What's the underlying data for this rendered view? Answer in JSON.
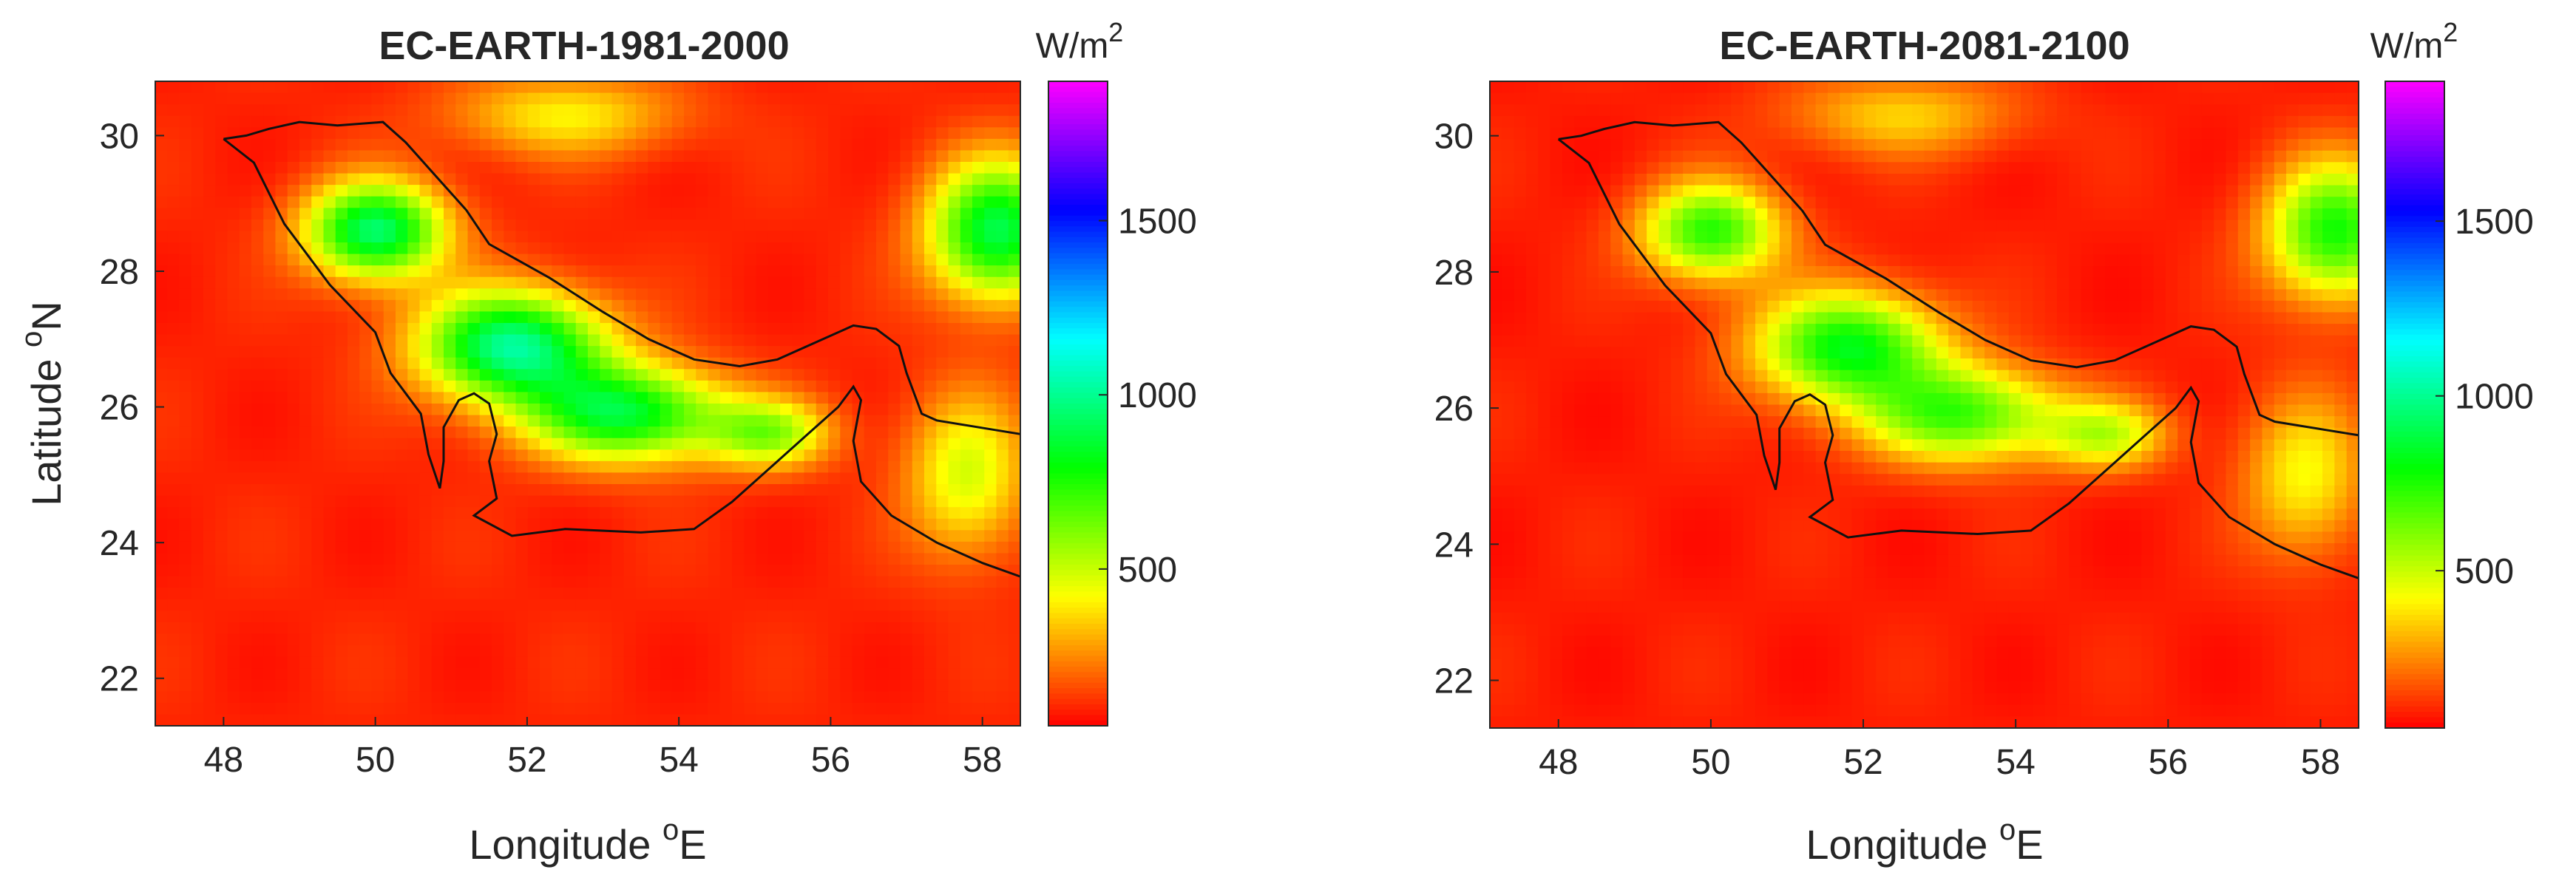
{
  "chart_data": [
    {
      "type": "heatmap",
      "title": "EC-EARTH-1981-2000",
      "xlabel": "Longitude",
      "xlabel_sup": "o",
      "xlabel_suffix": "E",
      "ylabel": "Latitude",
      "ylabel_sup": "o",
      "ylabel_suffix": "N",
      "xlim": [
        47.1,
        58.5
      ],
      "ylim": [
        21.3,
        30.8
      ],
      "xticks": [
        48,
        50,
        52,
        54,
        56,
        58
      ],
      "yticks": [
        22,
        24,
        26,
        28,
        30
      ],
      "colorbar": {
        "label": "W/m",
        "label_sup": "2",
        "range": [
          50,
          1900
        ],
        "ticks": [
          500,
          1000,
          1500
        ],
        "colormap": "hsv-reversed"
      },
      "field": {
        "background": 100,
        "hotspots": [
          {
            "lon": 50.0,
            "lat": 28.6,
            "value": 850,
            "sx": 0.9,
            "sy": 0.7
          },
          {
            "lon": 51.8,
            "lat": 26.9,
            "value": 900,
            "sx": 1.2,
            "sy": 0.8
          },
          {
            "lon": 53.3,
            "lat": 25.9,
            "value": 750,
            "sx": 1.3,
            "sy": 0.7
          },
          {
            "lon": 55.2,
            "lat": 25.6,
            "value": 450,
            "sx": 0.8,
            "sy": 0.5
          },
          {
            "lon": 58.2,
            "lat": 28.6,
            "value": 800,
            "sx": 0.9,
            "sy": 1.0
          },
          {
            "lon": 57.8,
            "lat": 25.0,
            "value": 380,
            "sx": 0.8,
            "sy": 1.2
          },
          {
            "lon": 52.5,
            "lat": 30.3,
            "value": 300,
            "sx": 1.5,
            "sy": 0.6
          }
        ]
      }
    },
    {
      "type": "heatmap",
      "title": "EC-EARTH-2081-2100",
      "xlabel": "Longitude",
      "xlabel_sup": "o",
      "xlabel_suffix": "E",
      "ylabel": "",
      "xlim": [
        47.1,
        58.5
      ],
      "ylim": [
        21.3,
        30.8
      ],
      "xticks": [
        48,
        50,
        52,
        54,
        56,
        58
      ],
      "yticks": [
        22,
        24,
        26,
        28,
        30
      ],
      "colorbar": {
        "label": "W/m",
        "label_sup": "2",
        "range": [
          50,
          1900
        ],
        "ticks": [
          500,
          1000,
          1500
        ],
        "colormap": "hsv-reversed"
      },
      "field": {
        "background": 90,
        "hotspots": [
          {
            "lon": 50.0,
            "lat": 28.6,
            "value": 650,
            "sx": 0.9,
            "sy": 0.7
          },
          {
            "lon": 51.8,
            "lat": 26.9,
            "value": 720,
            "sx": 1.2,
            "sy": 0.8
          },
          {
            "lon": 53.3,
            "lat": 25.9,
            "value": 600,
            "sx": 1.3,
            "sy": 0.7
          },
          {
            "lon": 55.2,
            "lat": 25.6,
            "value": 380,
            "sx": 0.8,
            "sy": 0.5
          },
          {
            "lon": 58.2,
            "lat": 28.6,
            "value": 680,
            "sx": 0.9,
            "sy": 1.0
          },
          {
            "lon": 57.8,
            "lat": 25.0,
            "value": 330,
            "sx": 0.8,
            "sy": 1.2
          },
          {
            "lon": 52.5,
            "lat": 30.3,
            "value": 260,
            "sx": 1.5,
            "sy": 0.6
          }
        ]
      }
    }
  ],
  "coastline": [
    [
      [
        48.0,
        29.95
      ],
      [
        48.3,
        30.0
      ],
      [
        48.6,
        30.1
      ],
      [
        49.0,
        30.2
      ],
      [
        49.5,
        30.15
      ],
      [
        50.1,
        30.2
      ],
      [
        50.4,
        29.9
      ],
      [
        50.8,
        29.4
      ],
      [
        51.2,
        28.9
      ],
      [
        51.5,
        28.4
      ],
      [
        52.3,
        27.9
      ],
      [
        53.0,
        27.4
      ],
      [
        53.6,
        27.0
      ],
      [
        54.2,
        26.7
      ],
      [
        54.8,
        26.6
      ],
      [
        55.3,
        26.7
      ],
      [
        55.9,
        27.0
      ],
      [
        56.3,
        27.2
      ],
      [
        56.6,
        27.15
      ],
      [
        56.9,
        26.9
      ],
      [
        57.0,
        26.5
      ],
      [
        57.2,
        25.9
      ],
      [
        57.4,
        25.8
      ],
      [
        58.5,
        25.6
      ]
    ],
    [
      [
        48.0,
        29.95
      ],
      [
        48.4,
        29.6
      ],
      [
        48.8,
        28.7
      ],
      [
        49.4,
        27.8
      ],
      [
        50.0,
        27.1
      ],
      [
        50.2,
        26.5
      ],
      [
        50.6,
        25.9
      ],
      [
        50.7,
        25.3
      ],
      [
        50.85,
        24.8
      ],
      [
        50.9,
        25.2
      ],
      [
        50.9,
        25.7
      ],
      [
        51.1,
        26.1
      ],
      [
        51.3,
        26.2
      ],
      [
        51.5,
        26.05
      ],
      [
        51.6,
        25.6
      ],
      [
        51.5,
        25.2
      ],
      [
        51.6,
        24.65
      ],
      [
        51.3,
        24.4
      ],
      [
        51.8,
        24.1
      ],
      [
        52.5,
        24.2
      ],
      [
        53.5,
        24.15
      ],
      [
        54.2,
        24.2
      ],
      [
        54.7,
        24.6
      ],
      [
        55.2,
        25.1
      ],
      [
        55.7,
        25.6
      ],
      [
        56.1,
        26.0
      ],
      [
        56.3,
        26.3
      ],
      [
        56.4,
        26.1
      ],
      [
        56.3,
        25.5
      ],
      [
        56.4,
        24.9
      ],
      [
        56.8,
        24.4
      ],
      [
        57.4,
        24.0
      ],
      [
        58.0,
        23.7
      ],
      [
        58.5,
        23.5
      ]
    ]
  ]
}
